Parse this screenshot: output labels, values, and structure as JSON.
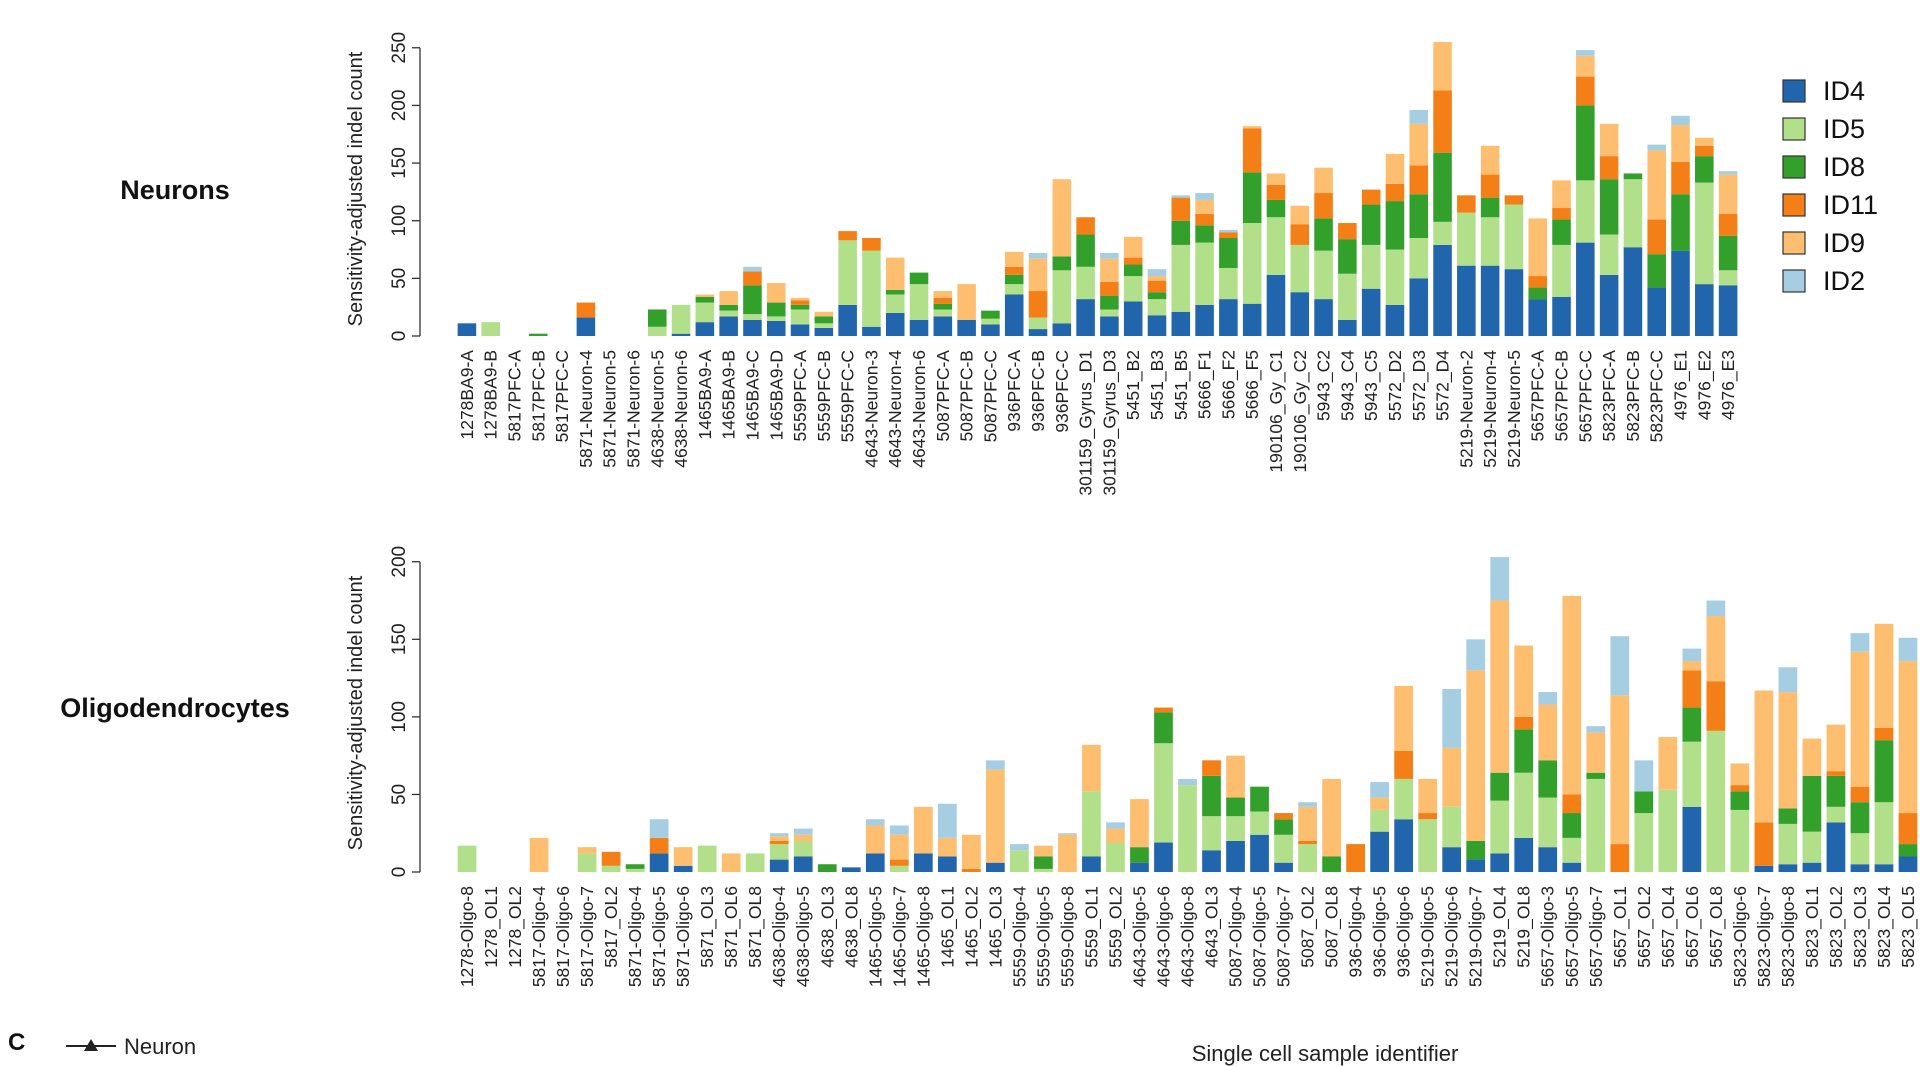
{
  "figure": {
    "series_names": [
      "ID4",
      "ID5",
      "ID8",
      "ID11",
      "ID9",
      "ID2"
    ],
    "series_colors": [
      "#2166ac",
      "#b2df8a",
      "#33a02c",
      "#f57f17",
      "#fdbf6f",
      "#a6cee3"
    ],
    "panel_c_letter": "C",
    "panel_c_legend_item": "Neuron",
    "x_axis_label": "Single cell sample identifier"
  },
  "chart_data": [
    {
      "type": "bar",
      "stacked": true,
      "title": "Neurons",
      "xlabel": "",
      "ylabel": "Sensitivity-adjusted indel count",
      "ylim": [
        0,
        255
      ],
      "yticks": [
        0,
        50,
        100,
        150,
        200,
        250
      ],
      "legend_position": "right",
      "categories": [
        "1278BA9-A",
        "1278BA9-B",
        "5817PFC-A",
        "5817PFC-B",
        "5817PFC-C",
        "5871-Neuron-4",
        "5871-Neuron-5",
        "5871-Neuron-6",
        "4638-Neuron-5",
        "4638-Neuron-6",
        "1465BA9-A",
        "1465BA9-B",
        "1465BA9-C",
        "1465BA9-D",
        "5559PFC-A",
        "5559PFC-B",
        "5559PFC-C",
        "4643-Neuron-3",
        "4643-Neuron-4",
        "4643-Neuron-6",
        "5087PFC-A",
        "5087PFC-B",
        "5087PFC-C",
        "936PFC-A",
        "936PFC-B",
        "936PFC-C",
        "301159_Gyrus_D1",
        "301159_Gyrus_D3",
        "5451_B2",
        "5451_B3",
        "5451_B5",
        "5666_F1",
        "5666_F2",
        "5666_F5",
        "190106_Gy_C1",
        "190106_Gy_C2",
        "5943_C2",
        "5943_C4",
        "5943_C5",
        "5572_D2",
        "5572_D3",
        "5572_D4",
        "5219-Neuron-2",
        "5219-Neuron-4",
        "5219-Neuron-5",
        "5657PFC-A",
        "5657PFC-B",
        "5657PFC-C",
        "5823PFC-A",
        "5823PFC-B",
        "5823PFC-C",
        "4976_E1",
        "4976_E2",
        "4976_E3"
      ],
      "series": [
        {
          "name": "ID4",
          "values": [
            11,
            0,
            0,
            0,
            0,
            16,
            0,
            0,
            0,
            2,
            12,
            17,
            14,
            13,
            10,
            7,
            27,
            8,
            20,
            14,
            17,
            14,
            10,
            36,
            6,
            11,
            32,
            17,
            30,
            18,
            21,
            27,
            32,
            28,
            53,
            38,
            32,
            14,
            41,
            27,
            50,
            79,
            61,
            61,
            58,
            32,
            34,
            81,
            53,
            77,
            42,
            74,
            45,
            44
          ]
        },
        {
          "name": "ID5",
          "values": [
            0,
            12,
            0,
            0,
            0,
            0,
            0,
            0,
            8,
            25,
            17,
            5,
            5,
            4,
            13,
            4,
            56,
            66,
            16,
            31,
            6,
            0,
            5,
            9,
            10,
            46,
            28,
            6,
            22,
            14,
            58,
            54,
            27,
            70,
            50,
            41,
            42,
            40,
            38,
            48,
            35,
            20,
            46,
            42,
            56,
            0,
            45,
            54,
            35,
            59,
            0,
            0,
            88,
            13
          ]
        },
        {
          "name": "ID8",
          "values": [
            0,
            0,
            0,
            2,
            0,
            0,
            0,
            0,
            15,
            0,
            5,
            5,
            25,
            12,
            4,
            6,
            0,
            0,
            4,
            10,
            5,
            0,
            7,
            8,
            0,
            12,
            28,
            12,
            10,
            6,
            21,
            15,
            26,
            44,
            15,
            0,
            28,
            30,
            35,
            42,
            38,
            60,
            0,
            17,
            0,
            10,
            22,
            65,
            48,
            5,
            29,
            49,
            23,
            30
          ]
        },
        {
          "name": "ID11",
          "values": [
            0,
            0,
            0,
            0,
            0,
            13,
            0,
            0,
            0,
            0,
            0,
            0,
            12,
            0,
            4,
            0,
            8,
            11,
            0,
            0,
            5,
            0,
            0,
            7,
            23,
            0,
            15,
            12,
            6,
            10,
            20,
            10,
            5,
            38,
            13,
            18,
            22,
            14,
            13,
            15,
            25,
            54,
            15,
            20,
            8,
            10,
            10,
            25,
            20,
            0,
            30,
            28,
            9,
            19
          ]
        },
        {
          "name": "ID9",
          "values": [
            0,
            0,
            0,
            0,
            0,
            0,
            0,
            0,
            0,
            0,
            2,
            12,
            0,
            17,
            2,
            4,
            0,
            0,
            28,
            0,
            6,
            31,
            0,
            13,
            28,
            67,
            0,
            20,
            18,
            4,
            0,
            12,
            0,
            2,
            10,
            16,
            22,
            0,
            0,
            26,
            36,
            42,
            0,
            25,
            0,
            50,
            24,
            18,
            28,
            0,
            60,
            32,
            7,
            34
          ]
        },
        {
          "name": "ID2",
          "values": [
            0,
            0,
            0,
            0,
            0,
            0,
            0,
            0,
            0,
            0,
            0,
            0,
            4,
            0,
            0,
            0,
            0,
            0,
            0,
            0,
            0,
            0,
            0,
            0,
            5,
            0,
            0,
            5,
            0,
            6,
            2,
            6,
            2,
            0,
            0,
            0,
            0,
            0,
            0,
            0,
            12,
            0,
            0,
            0,
            0,
            0,
            0,
            5,
            0,
            0,
            5,
            8,
            0,
            3
          ]
        }
      ]
    },
    {
      "type": "bar",
      "stacked": true,
      "title": "Oligodendrocytes",
      "xlabel": "Single cell sample identifier",
      "ylabel": "Sensitivity-adjusted indel count",
      "ylim": [
        0,
        205
      ],
      "yticks": [
        0,
        50,
        100,
        150,
        200
      ],
      "categories": [
        "1278-Oligo-8",
        "1278_OL1",
        "1278_OL2",
        "5817-Oligo-4",
        "5817-Oligo-6",
        "5817-Oligo-7",
        "5817_OL2",
        "5871-Oligo-4",
        "5871-Oligo-5",
        "5871-Oligo-6",
        "5871_OL3",
        "5871_OL6",
        "5871_OL8",
        "4638-Oligo-4",
        "4638-Oligo-5",
        "4638_OL3",
        "4638_OL8",
        "1465-Oligo-5",
        "1465-Oligo-7",
        "1465-Oligo-8",
        "1465_OL1",
        "1465_OL2",
        "1465_OL3",
        "5559-Oligo-4",
        "5559-Oligo-5",
        "5559-Oligo-8",
        "5559_OL1",
        "5559_OL2",
        "4643-Oligo-5",
        "4643-Oligo-6",
        "4643-Oligo-8",
        "4643_OL3",
        "5087-Oligo-4",
        "5087-Oligo-5",
        "5087-Oligo-7",
        "5087_OL2",
        "5087_OL8",
        "936-Oligo-4",
        "936-Oligo-5",
        "936-Oligo-6",
        "5219-Oligo-5",
        "5219-Oligo-6",
        "5219-Oligo-7",
        "5219_OL4",
        "5219_OL8",
        "5657-Oligo-3",
        "5657-Oligo-5",
        "5657-Oligo-7",
        "5657_OL1",
        "5657_OL2",
        "5657_OL4",
        "5657_OL6",
        "5657_OL8",
        "5823-Oligo-6",
        "5823-Oligo-7",
        "5823-Oligo-8",
        "5823_OL1",
        "5823_OL2",
        "5823_OL3",
        "5823_OL4",
        "5823_OL5"
      ],
      "series": [
        {
          "name": "ID4",
          "values": [
            0,
            0,
            0,
            0,
            0,
            0,
            0,
            0,
            12,
            4,
            0,
            0,
            0,
            8,
            10,
            0,
            3,
            12,
            0,
            12,
            10,
            0,
            6,
            0,
            0,
            0,
            10,
            0,
            6,
            19,
            0,
            14,
            20,
            24,
            6,
            0,
            0,
            0,
            26,
            34,
            0,
            16,
            8,
            12,
            22,
            16,
            6,
            0,
            0,
            0,
            0,
            42,
            0,
            0,
            4,
            5,
            6,
            32,
            5,
            5,
            10
          ]
        },
        {
          "name": "ID5",
          "values": [
            17,
            0,
            0,
            0,
            0,
            12,
            4,
            2,
            0,
            0,
            17,
            0,
            12,
            10,
            10,
            0,
            0,
            0,
            4,
            0,
            0,
            0,
            0,
            14,
            2,
            0,
            42,
            19,
            0,
            64,
            56,
            22,
            16,
            15,
            18,
            18,
            0,
            0,
            14,
            26,
            34,
            26,
            0,
            34,
            42,
            32,
            16,
            60,
            0,
            38,
            53,
            42,
            91,
            40,
            0,
            26,
            20,
            10,
            20,
            40,
            0
          ]
        },
        {
          "name": "ID8",
          "values": [
            0,
            0,
            0,
            0,
            0,
            0,
            0,
            3,
            0,
            0,
            0,
            0,
            0,
            0,
            0,
            5,
            0,
            0,
            0,
            0,
            0,
            0,
            0,
            0,
            8,
            0,
            0,
            0,
            10,
            20,
            0,
            26,
            12,
            16,
            10,
            0,
            10,
            0,
            0,
            0,
            0,
            0,
            12,
            18,
            28,
            24,
            16,
            4,
            0,
            14,
            0,
            22,
            0,
            12,
            0,
            10,
            36,
            20,
            20,
            40,
            8
          ]
        },
        {
          "name": "ID11",
          "values": [
            0,
            0,
            0,
            0,
            0,
            0,
            9,
            0,
            10,
            0,
            0,
            0,
            0,
            2,
            0,
            0,
            0,
            0,
            4,
            0,
            0,
            2,
            0,
            0,
            0,
            0,
            0,
            0,
            0,
            3,
            0,
            10,
            0,
            0,
            4,
            2,
            0,
            18,
            0,
            18,
            4,
            0,
            0,
            0,
            8,
            0,
            12,
            0,
            18,
            0,
            0,
            24,
            32,
            4,
            28,
            0,
            0,
            3,
            10,
            8,
            20
          ]
        },
        {
          "name": "ID9",
          "values": [
            0,
            0,
            0,
            22,
            0,
            4,
            0,
            0,
            0,
            12,
            0,
            12,
            0,
            3,
            4,
            0,
            0,
            18,
            16,
            30,
            12,
            22,
            60,
            0,
            7,
            24,
            30,
            9,
            31,
            0,
            0,
            0,
            27,
            0,
            0,
            22,
            50,
            0,
            8,
            42,
            22,
            38,
            110,
            111,
            46,
            36,
            128,
            26,
            96,
            0,
            34,
            6,
            42,
            14,
            85,
            75,
            24,
            30,
            87,
            67,
            98
          ]
        },
        {
          "name": "ID2",
          "values": [
            0,
            0,
            0,
            0,
            0,
            0,
            0,
            0,
            12,
            0,
            0,
            0,
            0,
            2,
            4,
            0,
            0,
            4,
            6,
            0,
            22,
            0,
            6,
            4,
            0,
            1,
            0,
            4,
            0,
            0,
            4,
            0,
            0,
            0,
            0,
            3,
            0,
            0,
            10,
            0,
            0,
            38,
            20,
            28,
            0,
            8,
            0,
            4,
            38,
            20,
            0,
            8,
            10,
            0,
            0,
            16,
            0,
            0,
            12,
            0,
            15
          ]
        }
      ]
    }
  ]
}
